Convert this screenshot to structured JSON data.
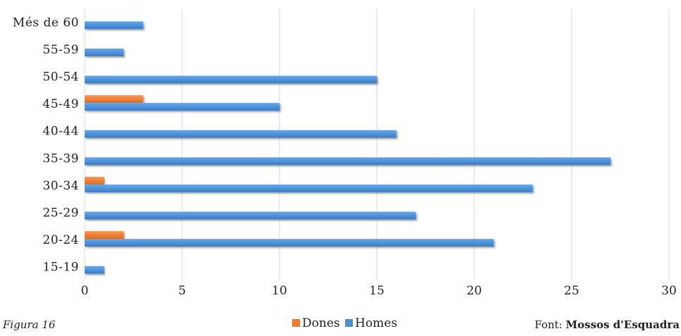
{
  "chart_data": {
    "type": "bar",
    "orientation": "horizontal",
    "categories": [
      "15-19",
      "20-24",
      "25-29",
      "30-34",
      "35-39",
      "40-44",
      "45-49",
      "50-54",
      "55-59",
      "Més de 60"
    ],
    "series": [
      {
        "name": "Dones",
        "values": [
          0,
          2,
          0,
          1,
          0,
          0,
          3,
          0,
          0,
          0
        ],
        "color": "#ed7d31"
      },
      {
        "name": "Homes",
        "values": [
          1,
          21,
          17,
          23,
          27,
          16,
          10,
          15,
          2,
          3
        ],
        "color": "#4a90d9"
      }
    ],
    "xlim": [
      0,
      30
    ],
    "xticks": [
      0,
      5,
      10,
      15,
      20,
      25,
      30
    ],
    "grid": true,
    "legend_position": "bottom-center"
  },
  "footer": {
    "left": "Figura 16",
    "right_prefix": "Font: ",
    "right_bold": "Mossos d'Esquadra"
  }
}
